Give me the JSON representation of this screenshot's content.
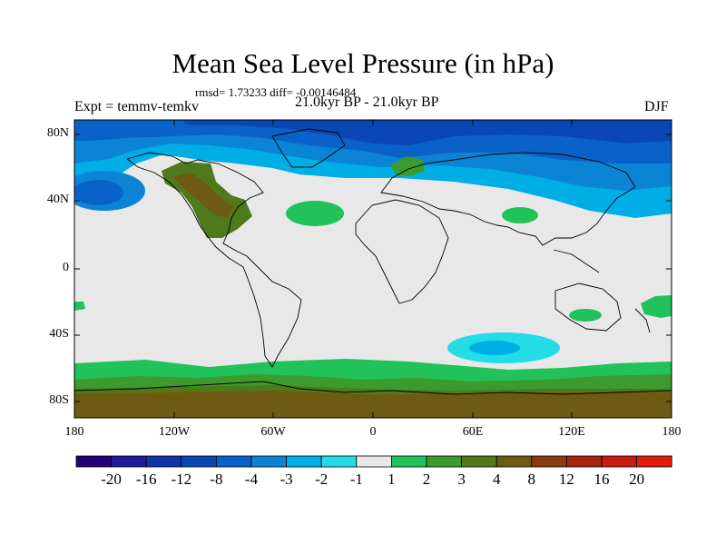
{
  "title": "Mean Sea Level Pressure (in hPa)",
  "stats": "rmsd= 1.73233 diff= -0.00146484",
  "experiment": "Expt = temmv-temkv",
  "period": "21.0kyr BP - 21.0kyr BP",
  "season": "DJF",
  "lat_ticks": [
    "80N",
    "40N",
    "0",
    "40S",
    "80S"
  ],
  "lon_ticks": [
    "180",
    "120W",
    "60W",
    "0",
    "60E",
    "120E",
    "180"
  ],
  "colorbar": {
    "labels": [
      "-20",
      "-16",
      "-12",
      "-8",
      "-4",
      "-3",
      "-2",
      "-1",
      "1",
      "2",
      "3",
      "4",
      "8",
      "12",
      "16",
      "20"
    ],
    "colors": [
      "#24007a",
      "#1e1a9a",
      "#1133a8",
      "#0a46b4",
      "#0a62c8",
      "#0b84d6",
      "#00aee6",
      "#22dce6",
      "#e8e8e8",
      "#22c25a",
      "#3c9a2e",
      "#4e7a1c",
      "#6e5a12",
      "#8a3a10",
      "#a82510",
      "#c81a10",
      "#e01c0c"
    ]
  },
  "colors": {
    "neutral": "#e8e8e8",
    "blue_deep": "#0a46b4",
    "blue_mid": "#0a62c8",
    "blue_light": "#0b84d6",
    "blue_sky": "#00aee6",
    "cyan": "#22dce6",
    "green": "#22c25a",
    "green_dark": "#3c9a2e",
    "olive": "#4e7a1c",
    "brown": "#6e5a12"
  }
}
